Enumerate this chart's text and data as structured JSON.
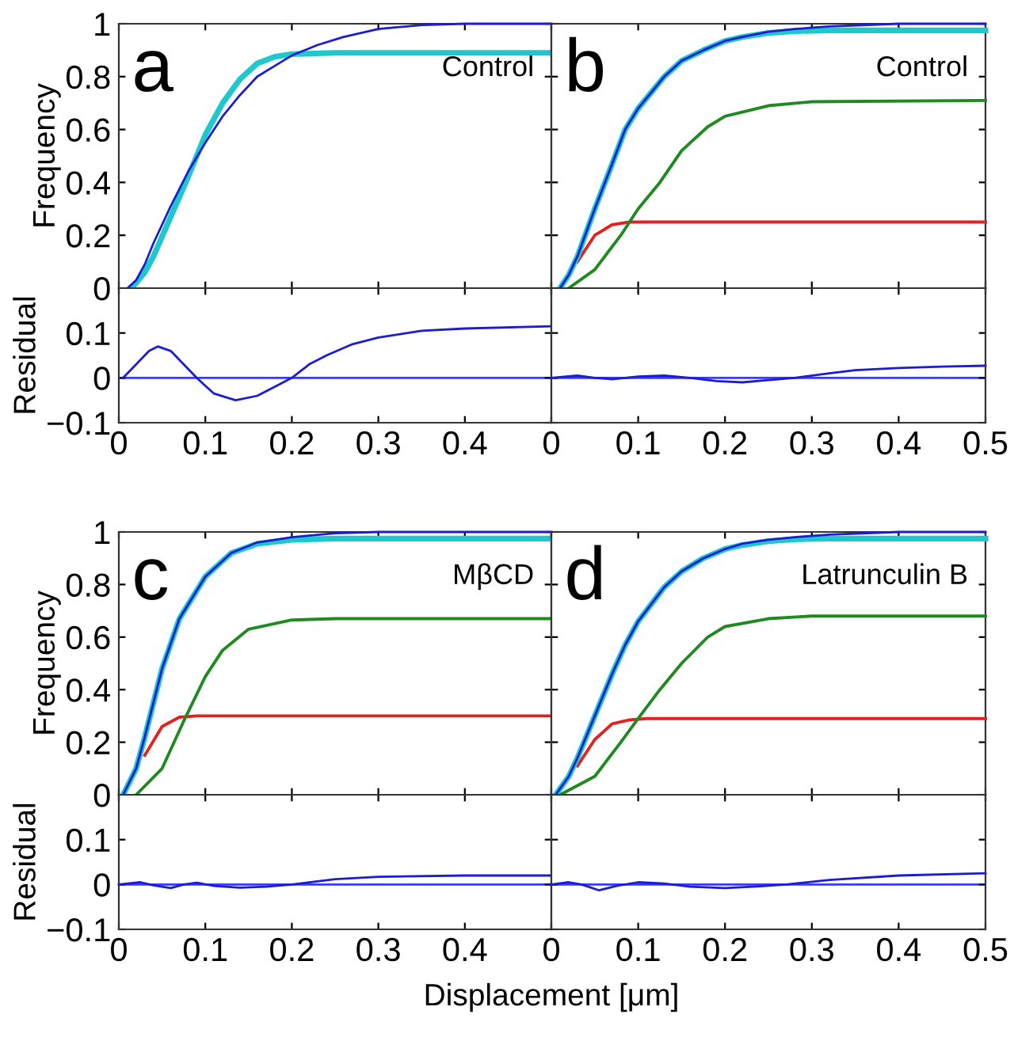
{
  "chart_data": [
    {
      "type": "line",
      "ylabel": "Frequency",
      "annotations": [
        "a",
        "Control"
      ],
      "xlim": [
        0,
        0.5
      ],
      "ylim": [
        0,
        1
      ],
      "xticks": [
        0,
        0.1,
        0.2,
        0.3,
        0.4,
        0.5
      ],
      "yticks": [
        0,
        0.2,
        0.4,
        0.6,
        0.8,
        1
      ],
      "tick_labels": "y",
      "grid": false,
      "legend": false,
      "series": [
        {
          "color": "#1c1cd0",
          "x": [
            0.01,
            0.02,
            0.03,
            0.04,
            0.05,
            0.06,
            0.08,
            0.1,
            0.12,
            0.14,
            0.16,
            0.18,
            0.2,
            0.23,
            0.26,
            0.3,
            0.35,
            0.4,
            0.5
          ],
          "values": [
            0,
            0.03,
            0.09,
            0.17,
            0.24,
            0.31,
            0.44,
            0.55,
            0.65,
            0.73,
            0.8,
            0.84,
            0.88,
            0.92,
            0.95,
            0.98,
            0.995,
            1,
            1
          ]
        },
        {
          "color": "#1ec8cc",
          "x": [
            0.015,
            0.03,
            0.04,
            0.06,
            0.08,
            0.09,
            0.1,
            0.12,
            0.14,
            0.16,
            0.18,
            0.2,
            0.25,
            0.5
          ],
          "values": [
            0,
            0.06,
            0.12,
            0.27,
            0.42,
            0.5,
            0.58,
            0.7,
            0.79,
            0.85,
            0.875,
            0.885,
            0.89,
            0.89
          ]
        }
      ]
    },
    {
      "type": "line",
      "ylabel": null,
      "annotations": [
        "b",
        "Control"
      ],
      "xlim": [
        0,
        0.5
      ],
      "ylim": [
        0,
        1
      ],
      "xticks": [
        0,
        0.1,
        0.2,
        0.3,
        0.4,
        0.5
      ],
      "yticks": [
        0,
        0.2,
        0.4,
        0.6,
        0.8,
        1
      ],
      "tick_labels": false,
      "grid": false,
      "legend": false,
      "series": [
        {
          "color": "#1c1cd0",
          "x": [
            0.01,
            0.02,
            0.03,
            0.05,
            0.07,
            0.085,
            0.1,
            0.13,
            0.15,
            0.175,
            0.2,
            0.22,
            0.25,
            0.28,
            0.32,
            0.4,
            0.5
          ],
          "values": [
            0,
            0.05,
            0.12,
            0.3,
            0.47,
            0.6,
            0.68,
            0.8,
            0.86,
            0.9,
            0.935,
            0.95,
            0.97,
            0.98,
            0.99,
            1,
            1
          ]
        },
        {
          "color": "#1ec8cc",
          "x": [
            0.01,
            0.02,
            0.03,
            0.05,
            0.07,
            0.085,
            0.1,
            0.13,
            0.15,
            0.175,
            0.2,
            0.22,
            0.25,
            0.28,
            0.32,
            0.5
          ],
          "values": [
            0,
            0.05,
            0.12,
            0.3,
            0.47,
            0.6,
            0.68,
            0.8,
            0.86,
            0.9,
            0.935,
            0.95,
            0.965,
            0.972,
            0.975,
            0.975
          ]
        },
        {
          "color": "#1f8a1f",
          "x": [
            0.02,
            0.05,
            0.08,
            0.1,
            0.125,
            0.15,
            0.18,
            0.2,
            0.25,
            0.3,
            0.5
          ],
          "values": [
            0,
            0.07,
            0.2,
            0.3,
            0.4,
            0.52,
            0.61,
            0.65,
            0.69,
            0.705,
            0.71
          ]
        },
        {
          "color": "#e62020",
          "x": [
            0.03,
            0.05,
            0.07,
            0.09,
            0.5
          ],
          "values": [
            0.1,
            0.2,
            0.24,
            0.25,
            0.25
          ]
        }
      ]
    },
    {
      "type": "line",
      "ylabel": "Residual",
      "xlim": [
        0,
        0.5
      ],
      "ylim": [
        -0.1,
        0.2
      ],
      "xticks": [
        0,
        0.1,
        0.2,
        0.3,
        0.4,
        {
          "value": 0.5,
          "label": null
        }
      ],
      "yticks": [
        {
          "value": -0.1,
          "label": "−0.1"
        },
        0,
        0.1
      ],
      "grid": false,
      "legend": false,
      "ref_lines": [
        {
          "axis": "y",
          "value": 0,
          "label": null,
          "color": "#3a3aff"
        }
      ],
      "series": [
        {
          "color": "#1c1cd0",
          "x": [
            0.005,
            0.02,
            0.035,
            0.045,
            0.06,
            0.075,
            0.09,
            0.11,
            0.135,
            0.16,
            0.18,
            0.2,
            0.22,
            0.24,
            0.27,
            0.3,
            0.35,
            0.4,
            0.5
          ],
          "values": [
            0,
            0.03,
            0.06,
            0.07,
            0.06,
            0.03,
            0,
            -0.035,
            -0.05,
            -0.04,
            -0.02,
            0,
            0.03,
            0.05,
            0.075,
            0.09,
            0.105,
            0.11,
            0.115
          ]
        }
      ]
    },
    {
      "type": "line",
      "ylabel": null,
      "xlim": [
        0,
        0.5
      ],
      "ylim": [
        -0.1,
        0.2
      ],
      "xticks": [
        0,
        0.1,
        0.2,
        0.3,
        0.4,
        0.5
      ],
      "yticks": [
        -0.1,
        0,
        0.1
      ],
      "tick_labels": "x",
      "grid": false,
      "legend": false,
      "ref_lines": [
        {
          "axis": "y",
          "value": 0,
          "label": null,
          "color": "#3a3aff"
        }
      ],
      "series": [
        {
          "color": "#1c1cd0",
          "x": [
            0,
            0.03,
            0.05,
            0.07,
            0.1,
            0.13,
            0.16,
            0.19,
            0.22,
            0.25,
            0.28,
            0.32,
            0.35,
            0.4,
            0.45,
            0.5
          ],
          "values": [
            0,
            0.005,
            0,
            -0.003,
            0.003,
            0.005,
            0,
            -0.007,
            -0.01,
            -0.005,
            0,
            0.01,
            0.017,
            0.022,
            0.025,
            0.027
          ]
        }
      ]
    },
    {
      "type": "line",
      "ylabel": "Frequency",
      "annotations": [
        "c",
        "MβCD"
      ],
      "xlim": [
        0,
        0.5
      ],
      "ylim": [
        0,
        1
      ],
      "xticks": [
        0,
        0.1,
        0.2,
        0.3,
        0.4,
        0.5
      ],
      "yticks": [
        0,
        0.2,
        0.4,
        0.6,
        0.8,
        1
      ],
      "tick_labels": "y",
      "grid": false,
      "legend": false,
      "series": [
        {
          "color": "#1c1cd0",
          "x": [
            0.005,
            0.02,
            0.03,
            0.05,
            0.07,
            0.1,
            0.13,
            0.16,
            0.2,
            0.25,
            0.3,
            0.5
          ],
          "values": [
            0,
            0.1,
            0.22,
            0.48,
            0.67,
            0.83,
            0.92,
            0.96,
            0.98,
            0.995,
            1,
            1
          ]
        },
        {
          "color": "#1ec8cc",
          "x": [
            0.005,
            0.02,
            0.03,
            0.05,
            0.07,
            0.1,
            0.13,
            0.16,
            0.2,
            0.25,
            0.5
          ],
          "values": [
            0,
            0.1,
            0.22,
            0.48,
            0.67,
            0.83,
            0.92,
            0.955,
            0.97,
            0.975,
            0.975
          ]
        },
        {
          "color": "#1f8a1f",
          "x": [
            0.02,
            0.05,
            0.075,
            0.1,
            0.12,
            0.15,
            0.2,
            0.25,
            0.5
          ],
          "values": [
            0,
            0.1,
            0.28,
            0.45,
            0.55,
            0.63,
            0.665,
            0.67,
            0.67
          ]
        },
        {
          "color": "#e62020",
          "x": [
            0.03,
            0.05,
            0.07,
            0.09,
            0.5
          ],
          "values": [
            0.15,
            0.26,
            0.295,
            0.3,
            0.3
          ]
        }
      ]
    },
    {
      "type": "line",
      "ylabel": null,
      "annotations": [
        "d",
        "Latrunculin B"
      ],
      "xlim": [
        0,
        0.5
      ],
      "ylim": [
        0,
        1
      ],
      "xticks": [
        0,
        0.1,
        0.2,
        0.3,
        0.4,
        0.5
      ],
      "yticks": [
        0,
        0.2,
        0.4,
        0.6,
        0.8,
        1
      ],
      "tick_labels": false,
      "grid": false,
      "legend": false,
      "series": [
        {
          "color": "#1c1cd0",
          "x": [
            0.005,
            0.02,
            0.03,
            0.05,
            0.07,
            0.085,
            0.1,
            0.13,
            0.15,
            0.175,
            0.2,
            0.22,
            0.25,
            0.28,
            0.32,
            0.4,
            0.5
          ],
          "values": [
            0,
            0.07,
            0.14,
            0.3,
            0.46,
            0.57,
            0.66,
            0.79,
            0.85,
            0.9,
            0.935,
            0.955,
            0.97,
            0.98,
            0.99,
            1,
            1
          ]
        },
        {
          "color": "#1ec8cc",
          "x": [
            0.005,
            0.02,
            0.03,
            0.05,
            0.07,
            0.085,
            0.1,
            0.13,
            0.15,
            0.175,
            0.2,
            0.22,
            0.25,
            0.28,
            0.32,
            0.5
          ],
          "values": [
            0,
            0.07,
            0.14,
            0.3,
            0.46,
            0.57,
            0.66,
            0.79,
            0.85,
            0.9,
            0.935,
            0.95,
            0.965,
            0.972,
            0.975,
            0.975
          ]
        },
        {
          "color": "#1f8a1f",
          "x": [
            0.01,
            0.05,
            0.08,
            0.1,
            0.125,
            0.15,
            0.18,
            0.2,
            0.25,
            0.3,
            0.5
          ],
          "values": [
            0,
            0.07,
            0.2,
            0.29,
            0.4,
            0.5,
            0.6,
            0.64,
            0.67,
            0.68,
            0.68
          ]
        },
        {
          "color": "#e62020",
          "x": [
            0.03,
            0.05,
            0.07,
            0.09,
            0.11,
            0.5
          ],
          "values": [
            0.11,
            0.21,
            0.27,
            0.285,
            0.29,
            0.29
          ]
        }
      ]
    },
    {
      "type": "line",
      "ylabel": "Residual",
      "xlim": [
        0,
        0.5
      ],
      "ylim": [
        -0.1,
        0.2
      ],
      "xticks": [
        0,
        0.1,
        0.2,
        0.3,
        0.4,
        {
          "value": 0.5,
          "label": null
        }
      ],
      "yticks": [
        {
          "value": -0.1,
          "label": "−0.1"
        },
        0,
        0.1
      ],
      "grid": false,
      "legend": false,
      "ref_lines": [
        {
          "axis": "y",
          "value": 0,
          "label": null,
          "color": "#3a3aff"
        }
      ],
      "series": [
        {
          "color": "#1c1cd0",
          "x": [
            0,
            0.025,
            0.04,
            0.06,
            0.075,
            0.09,
            0.11,
            0.14,
            0.17,
            0.2,
            0.25,
            0.3,
            0.4,
            0.5
          ],
          "values": [
            0,
            0.005,
            -0.002,
            -0.008,
            0,
            0.004,
            -0.003,
            -0.007,
            -0.005,
            0,
            0.012,
            0.017,
            0.02,
            0.02
          ]
        }
      ]
    },
    {
      "type": "line",
      "ylabel": null,
      "xlabel": "Displacement [μm]",
      "xlim": [
        0,
        0.5
      ],
      "ylim": [
        -0.1,
        0.2
      ],
      "xticks": [
        0,
        0.1,
        0.2,
        0.3,
        0.4,
        0.5
      ],
      "yticks": [
        -0.1,
        0,
        0.1
      ],
      "tick_labels": "x",
      "grid": false,
      "legend": false,
      "ref_lines": [
        {
          "axis": "y",
          "value": 0,
          "label": null,
          "color": "#3a3aff"
        }
      ],
      "series": [
        {
          "color": "#1c1cd0",
          "x": [
            0,
            0.02,
            0.035,
            0.055,
            0.075,
            0.1,
            0.13,
            0.16,
            0.2,
            0.24,
            0.27,
            0.32,
            0.4,
            0.5
          ],
          "values": [
            0,
            0.005,
            0,
            -0.013,
            -0.003,
            0.005,
            0.002,
            -0.005,
            -0.008,
            -0.004,
            0,
            0.01,
            0.02,
            0.025
          ]
        }
      ]
    }
  ]
}
